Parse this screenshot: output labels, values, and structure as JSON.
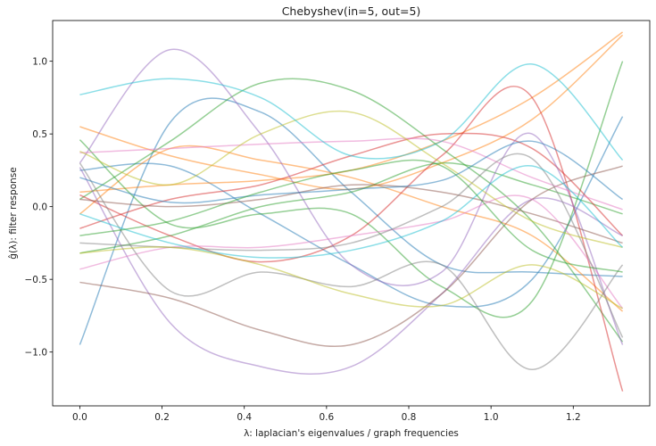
{
  "chart_data": {
    "type": "line",
    "title": "Chebyshev(in=5, out=5)",
    "xlabel": "λ: laplacian's eigenvalues / graph frequencies",
    "ylabel": "ĝ(λ): filter response",
    "xlim": [
      -0.066,
      1.386
    ],
    "ylim": [
      -1.37,
      1.28
    ],
    "xticks": [
      "0.0",
      "0.2",
      "0.4",
      "0.6",
      "0.8",
      "1.0",
      "1.2"
    ],
    "xtick_values": [
      0.0,
      0.2,
      0.4,
      0.6,
      0.8,
      1.0,
      1.2
    ],
    "yticks": [
      "−1.0",
      "−0.5",
      "0.0",
      "0.5",
      "1.0"
    ],
    "ytick_values": [
      -1.0,
      -0.5,
      0.0,
      0.5,
      1.0
    ],
    "grid": false,
    "x": [
      0.0,
      0.22,
      0.44,
      0.66,
      0.88,
      1.1,
      1.32
    ],
    "line_opacity": 0.5,
    "series": [
      {
        "color": "#1f77b4",
        "values": [
          -0.95,
          0.58,
          0.65,
          0.1,
          -0.4,
          -0.45,
          -0.48
        ]
      },
      {
        "color": "#1f77b4",
        "values": [
          0.25,
          0.28,
          -0.05,
          -0.4,
          -0.68,
          -0.5,
          0.62
        ]
      },
      {
        "color": "#ff7f0e",
        "values": [
          0.55,
          0.35,
          0.22,
          0.12,
          0.3,
          0.6,
          1.18
        ]
      },
      {
        "color": "#ff7f0e",
        "values": [
          -0.05,
          0.4,
          0.32,
          0.2,
          0.0,
          -0.2,
          -0.72
        ]
      },
      {
        "color": "#ff7f0e",
        "values": [
          0.1,
          0.15,
          0.18,
          0.25,
          0.45,
          0.75,
          1.2
        ]
      },
      {
        "color": "#2ca02c",
        "values": [
          0.46,
          -0.12,
          -0.05,
          -0.05,
          -0.55,
          -0.65,
          1.0
        ]
      },
      {
        "color": "#2ca02c",
        "values": [
          0.05,
          0.45,
          0.85,
          0.8,
          0.4,
          -0.1,
          -0.93
        ]
      },
      {
        "color": "#2ca02c",
        "values": [
          -0.32,
          -0.2,
          0.0,
          0.1,
          0.3,
          0.15,
          -0.05
        ]
      },
      {
        "color": "#d62728",
        "values": [
          0.08,
          -0.2,
          -0.38,
          -0.2,
          0.35,
          0.75,
          -1.27
        ]
      },
      {
        "color": "#d62728",
        "values": [
          -0.15,
          0.05,
          0.15,
          0.35,
          0.5,
          0.4,
          -0.2
        ]
      },
      {
        "color": "#9467bd",
        "values": [
          0.3,
          1.08,
          0.5,
          -0.4,
          -0.45,
          0.5,
          -0.95
        ]
      },
      {
        "color": "#9467bd",
        "values": [
          0.27,
          -0.8,
          -1.1,
          -1.1,
          -0.6,
          0.05,
          -0.2
        ]
      },
      {
        "color": "#8c564b",
        "values": [
          -0.52,
          -0.63,
          -0.85,
          -0.95,
          -0.6,
          0.05,
          0.28
        ]
      },
      {
        "color": "#8c564b",
        "values": [
          0.05,
          0.0,
          0.05,
          0.15,
          0.1,
          -0.05,
          -0.25
        ]
      },
      {
        "color": "#e377c2",
        "values": [
          -0.43,
          -0.28,
          -0.28,
          -0.2,
          -0.1,
          0.05,
          -0.7
        ]
      },
      {
        "color": "#e377c2",
        "values": [
          0.37,
          0.4,
          0.43,
          0.45,
          0.45,
          0.2,
          -0.02
        ]
      },
      {
        "color": "#7f7f7f",
        "values": [
          0.3,
          -0.58,
          -0.45,
          -0.55,
          -0.4,
          -1.12,
          -0.4
        ]
      },
      {
        "color": "#7f7f7f",
        "values": [
          -0.25,
          -0.28,
          -0.3,
          -0.25,
          0.0,
          0.33,
          -0.9
        ]
      },
      {
        "color": "#bcbd22",
        "values": [
          0.38,
          0.15,
          0.5,
          0.65,
          0.3,
          -0.1,
          -0.28
        ]
      },
      {
        "color": "#bcbd22",
        "values": [
          -0.32,
          -0.28,
          -0.4,
          -0.6,
          -0.68,
          -0.4,
          -0.7
        ]
      },
      {
        "color": "#17becf",
        "values": [
          0.77,
          0.88,
          0.75,
          0.35,
          0.45,
          0.98,
          0.32
        ]
      },
      {
        "color": "#17becf",
        "values": [
          -0.05,
          -0.25,
          -0.35,
          -0.3,
          -0.1,
          0.28,
          -0.28
        ]
      },
      {
        "color": "#1f77b4",
        "values": [
          0.2,
          0.03,
          0.08,
          0.12,
          0.18,
          0.45,
          0.05
        ]
      },
      {
        "color": "#2ca02c",
        "values": [
          -0.2,
          -0.1,
          0.1,
          0.25,
          0.28,
          -0.3,
          -0.45
        ]
      }
    ]
  }
}
